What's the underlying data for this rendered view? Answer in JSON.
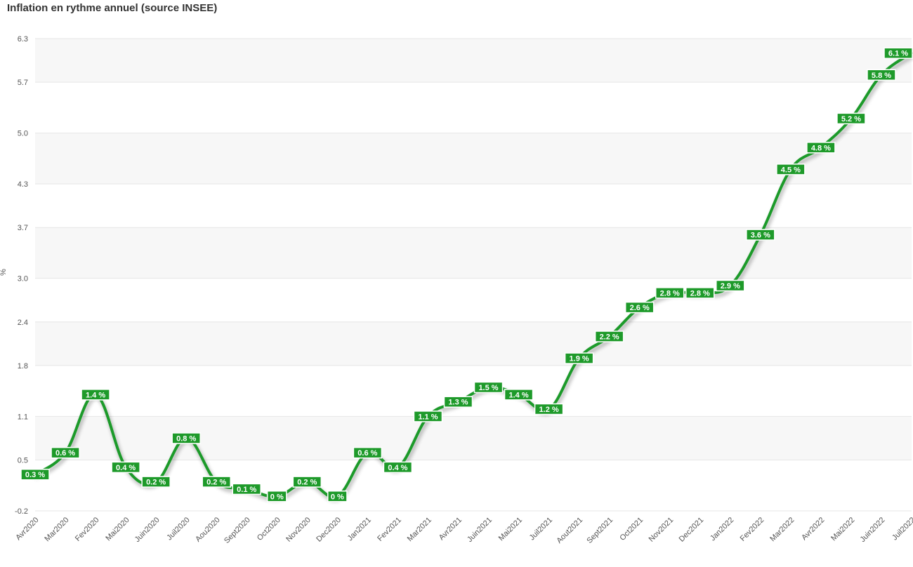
{
  "chart_data": {
    "type": "line",
    "title": "Inflation en rythme annuel (source INSEE)",
    "xlabel": "",
    "ylabel": "%",
    "categories": [
      "Avr2020",
      "Mar2020",
      "Fev2020",
      "Mai2020",
      "Juin2020",
      "Juil2020",
      "Aou2020",
      "Sept2020",
      "Oct2020",
      "Nov2020",
      "Dec2020",
      "Jan2021",
      "Fev2021",
      "Mar2021",
      "Avr2021",
      "Juin2021",
      "Mai2021",
      "Juil2021",
      "Aout2021",
      "Sept2021",
      "Oct2021",
      "Nov2021",
      "Dec2021",
      "Jan2022",
      "Fev2022",
      "Mar2022",
      "Avr2022",
      "Mai2022",
      "Juin2022",
      "Juil2022"
    ],
    "series": [
      {
        "values": [
          0.3,
          0.6,
          1.4,
          0.4,
          0.2,
          0.8,
          0.2,
          0.1,
          0,
          0.2,
          0,
          0.6,
          0.4,
          1.1,
          1.3,
          1.5,
          1.4,
          1.2,
          1.9,
          2.2,
          2.6,
          2.8,
          2.8,
          2.9,
          3.6,
          4.5,
          4.8,
          5.2,
          5.8,
          6.1
        ],
        "labels": [
          "0.3 %",
          "0.6 %",
          "1.4 %",
          "0.4 %",
          "0.2 %",
          "0.8 %",
          "0.2 %",
          "0.1 %",
          "0 %",
          "0.2 %",
          "0 %",
          "0.6 %",
          "0.4 %",
          "1.1 %",
          "1.3 %",
          "1.5 %",
          "1.4 %",
          "1.2 %",
          "1.9 %",
          "2.2 %",
          "2.6 %",
          "2.8 %",
          "2.8 %",
          "2.9 %",
          "3.6 %",
          "4.5 %",
          "4.8 %",
          "5.2 %",
          "5.8 %",
          "6.1 %"
        ]
      }
    ],
    "ylim": [
      -0.2,
      6.3
    ],
    "yticks": [
      "-0.2",
      "0.5",
      "1.1",
      "1.8",
      "2.4",
      "3.0",
      "3.7",
      "4.3",
      "5.0",
      "5.7",
      "6.3"
    ],
    "grid": true,
    "colors": {
      "line": "#1e9a2a",
      "label_bg": "#1e9a2a",
      "band": "#f7f7f7"
    }
  }
}
